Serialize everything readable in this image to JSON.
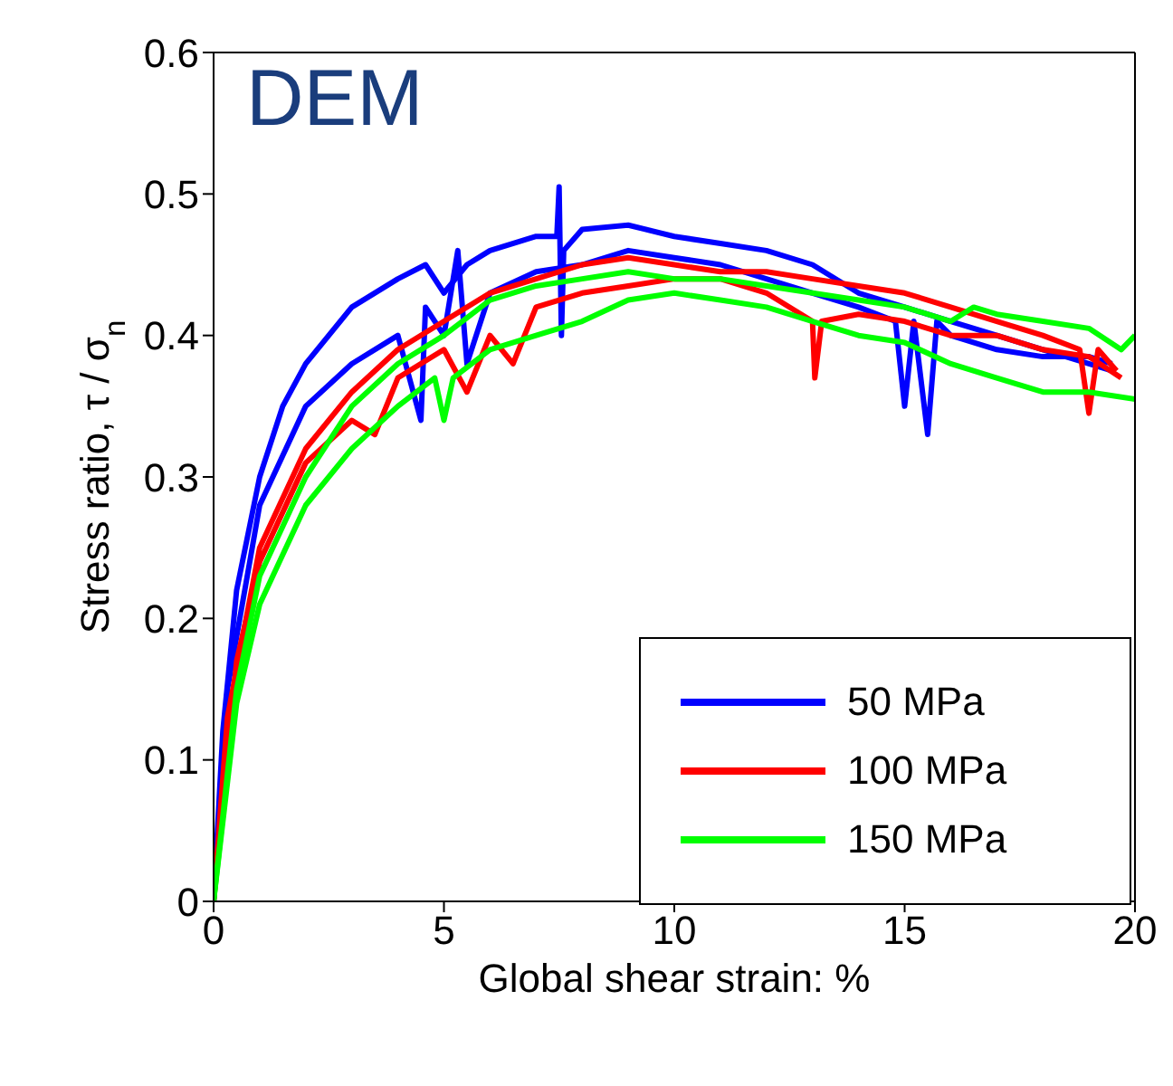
{
  "chart_data": {
    "type": "line",
    "xlabel": "Global shear strain: %",
    "ylabel": "Stress ratio, τ / σ$_{n}$",
    "annotations": [
      "DEM"
    ],
    "xlim": [
      0,
      20
    ],
    "xticks": [
      0,
      5,
      10,
      15,
      20
    ],
    "ylim": [
      0,
      0.6
    ],
    "yticks": [
      0,
      0.1,
      0.2,
      0.3,
      0.4,
      0.5,
      0.6
    ],
    "legend": "bottom right",
    "series": [
      {
        "name": "50 MPa",
        "color": "#0000ff",
        "x": [
          0,
          0.2,
          0.5,
          1,
          1.5,
          2,
          3,
          4,
          4.6,
          5,
          5.5,
          6,
          7,
          7.45,
          7.5,
          7.55,
          7.6,
          8,
          9,
          10,
          11,
          12,
          13,
          14,
          15,
          16,
          17,
          18,
          19,
          19.5
        ],
        "values": [
          0,
          0.12,
          0.22,
          0.3,
          0.35,
          0.38,
          0.42,
          0.44,
          0.45,
          0.43,
          0.45,
          0.46,
          0.47,
          0.47,
          0.505,
          0.4,
          0.46,
          0.475,
          0.478,
          0.47,
          0.465,
          0.46,
          0.45,
          0.43,
          0.42,
          0.41,
          0.4,
          0.39,
          0.38,
          0.375
        ]
      },
      {
        "color": "#0000ff",
        "x": [
          0,
          0.3,
          1,
          2,
          3,
          4,
          4.5,
          4.6,
          5,
          5.3,
          5.5,
          6,
          7,
          8,
          9,
          10,
          11,
          12,
          13,
          14,
          14.8,
          15,
          15.2,
          15.5,
          15.7,
          16,
          17,
          18,
          19,
          19.5
        ],
        "values": [
          0,
          0.15,
          0.28,
          0.35,
          0.38,
          0.4,
          0.34,
          0.42,
          0.4,
          0.46,
          0.38,
          0.43,
          0.445,
          0.45,
          0.46,
          0.455,
          0.45,
          0.44,
          0.43,
          0.42,
          0.41,
          0.35,
          0.41,
          0.33,
          0.41,
          0.4,
          0.39,
          0.385,
          0.385,
          0.38
        ]
      },
      {
        "name": "100 MPa",
        "color": "#ff0000",
        "x": [
          0,
          0.3,
          1,
          2,
          3,
          4,
          5,
          6,
          7,
          8,
          9,
          10,
          11,
          12,
          13,
          14,
          15,
          16,
          17,
          18,
          18.8,
          19,
          19.2,
          19.6
        ],
        "values": [
          0,
          0.13,
          0.25,
          0.32,
          0.36,
          0.39,
          0.41,
          0.43,
          0.44,
          0.45,
          0.455,
          0.45,
          0.445,
          0.445,
          0.44,
          0.435,
          0.43,
          0.42,
          0.41,
          0.4,
          0.39,
          0.345,
          0.39,
          0.375
        ]
      },
      {
        "color": "#ff0000",
        "x": [
          0,
          0.5,
          1,
          2,
          3,
          3.5,
          4,
          5,
          5.5,
          6,
          6.5,
          7,
          8,
          9,
          10,
          11,
          12,
          13,
          13.05,
          13.2,
          14,
          15,
          16,
          17,
          18,
          19,
          19.7
        ],
        "values": [
          0,
          0.17,
          0.24,
          0.31,
          0.34,
          0.33,
          0.37,
          0.39,
          0.36,
          0.4,
          0.38,
          0.42,
          0.43,
          0.435,
          0.44,
          0.44,
          0.43,
          0.41,
          0.37,
          0.41,
          0.415,
          0.41,
          0.4,
          0.4,
          0.39,
          0.385,
          0.37
        ]
      },
      {
        "name": "150 MPa",
        "color": "#00ff00",
        "x": [
          0,
          0.5,
          1,
          2,
          3,
          4,
          5,
          6,
          7,
          8,
          9,
          10,
          11,
          12,
          13,
          14,
          15,
          16,
          16.5,
          17,
          18,
          19,
          19.7,
          20
        ],
        "values": [
          0,
          0.15,
          0.23,
          0.3,
          0.35,
          0.38,
          0.4,
          0.425,
          0.435,
          0.44,
          0.445,
          0.44,
          0.44,
          0.435,
          0.43,
          0.425,
          0.42,
          0.41,
          0.42,
          0.415,
          0.41,
          0.405,
          0.39,
          0.4
        ]
      },
      {
        "color": "#00ff00",
        "x": [
          0,
          0.5,
          1,
          2,
          3,
          4,
          4.8,
          5,
          5.2,
          6,
          7,
          8,
          9,
          10,
          11,
          12,
          13,
          14,
          15,
          16,
          17,
          18,
          19,
          20
        ],
        "values": [
          0,
          0.14,
          0.21,
          0.28,
          0.32,
          0.35,
          0.37,
          0.34,
          0.37,
          0.39,
          0.4,
          0.41,
          0.425,
          0.43,
          0.425,
          0.42,
          0.41,
          0.4,
          0.395,
          0.38,
          0.37,
          0.36,
          0.36,
          0.355
        ]
      }
    ]
  }
}
